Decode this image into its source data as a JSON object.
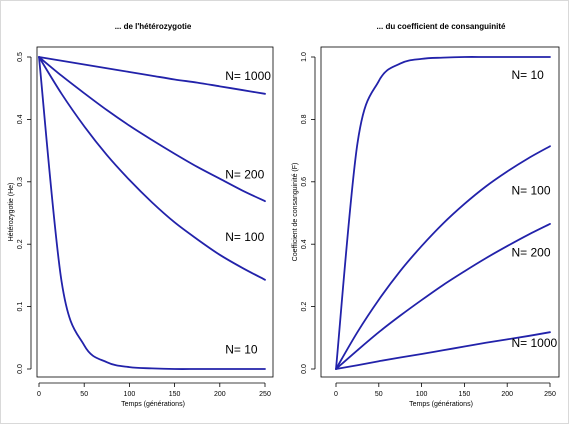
{
  "colors": {
    "line": "#2222aa",
    "axis": "#000000",
    "background": "#ffffff"
  },
  "chart_data": [
    {
      "type": "line",
      "title": "... de l'hétérozygotie",
      "xlabel": "Temps (générations)",
      "ylabel": "Hétérozygotie (He)",
      "xlim": [
        0,
        250
      ],
      "ylim": [
        0,
        0.5
      ],
      "xticks": [
        "0",
        "50",
        "100",
        "150",
        "200",
        "250"
      ],
      "yticks": [
        "0.0",
        "0.1",
        "0.2",
        "0.3",
        "0.4",
        "0.5"
      ],
      "x": [
        0,
        25,
        50,
        75,
        100,
        125,
        150,
        175,
        200,
        225,
        250
      ],
      "series": [
        {
          "name": "N= 1000",
          "label_at": [
            206,
            0.463
          ],
          "values": [
            0.5,
            0.494,
            0.488,
            0.482,
            0.476,
            0.47,
            0.464,
            0.459,
            0.453,
            0.447,
            0.441
          ]
        },
        {
          "name": "N= 200",
          "label_at": [
            206,
            0.305
          ],
          "values": [
            0.5,
            0.47,
            0.442,
            0.415,
            0.39,
            0.367,
            0.345,
            0.324,
            0.305,
            0.286,
            0.269
          ]
        },
        {
          "name": "N= 100",
          "label_at": [
            206,
            0.205
          ],
          "values": [
            0.5,
            0.441,
            0.389,
            0.343,
            0.303,
            0.267,
            0.235,
            0.208,
            0.183,
            0.162,
            0.143
          ]
        },
        {
          "name": "N= 10",
          "label_at": [
            206,
            0.025
          ],
          "values": [
            0.5,
            0.14,
            0.038,
            0.011,
            0.003,
            0.001,
            0.0,
            0.0,
            0.0,
            0.0,
            0.0
          ]
        }
      ]
    },
    {
      "type": "line",
      "title": "... du coefficient de consanguinité",
      "xlabel": "Temps (générations)",
      "ylabel": "Coefficient de consanguinité (F)",
      "xlim": [
        0,
        250
      ],
      "ylim": [
        0,
        1.0
      ],
      "xticks": [
        "0",
        "50",
        "100",
        "150",
        "200",
        "250"
      ],
      "yticks": [
        "0.0",
        "0.2",
        "0.4",
        "0.6",
        "0.8",
        "1.0"
      ],
      "x": [
        0,
        25,
        50,
        75,
        100,
        125,
        150,
        175,
        200,
        225,
        250
      ],
      "series": [
        {
          "name": "N= 10",
          "label_at": [
            205,
            0.93
          ],
          "values": [
            0.0,
            0.722,
            0.923,
            0.979,
            0.994,
            0.998,
            1.0,
            1.0,
            1.0,
            1.0,
            1.0
          ]
        },
        {
          "name": "N= 100",
          "label_at": [
            205,
            0.56
          ],
          "values": [
            0.0,
            0.118,
            0.222,
            0.314,
            0.394,
            0.466,
            0.529,
            0.585,
            0.633,
            0.676,
            0.714
          ]
        },
        {
          "name": "N= 200",
          "label_at": [
            205,
            0.36
          ],
          "values": [
            0.0,
            0.06,
            0.118,
            0.171,
            0.221,
            0.269,
            0.313,
            0.355,
            0.394,
            0.431,
            0.465
          ]
        },
        {
          "name": "N= 1000",
          "label_at": [
            205,
            0.07
          ],
          "values": [
            0.0,
            0.012,
            0.025,
            0.037,
            0.048,
            0.06,
            0.072,
            0.084,
            0.095,
            0.106,
            0.118
          ]
        }
      ]
    }
  ]
}
